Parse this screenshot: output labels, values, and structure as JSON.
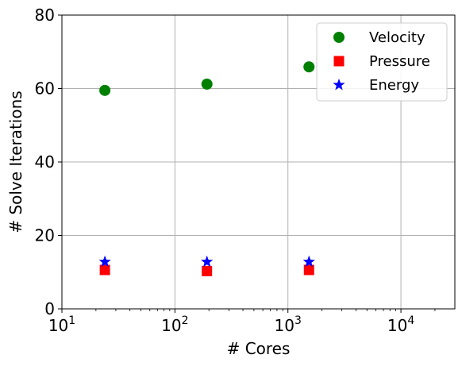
{
  "chart_data": {
    "type": "scatter",
    "xlabel": "# Cores",
    "ylabel": "# Solve Iterations",
    "xscale": "log",
    "xlim": [
      10,
      30000
    ],
    "ylim": [
      0,
      80
    ],
    "grid": true,
    "legend_position": "top-right",
    "x_ticks": [
      {
        "value": 10,
        "base": "10",
        "exp": "1"
      },
      {
        "value": 100,
        "base": "10",
        "exp": "2"
      },
      {
        "value": 1000,
        "base": "10",
        "exp": "3"
      },
      {
        "value": 10000,
        "base": "10",
        "exp": "4"
      }
    ],
    "y_ticks": [
      {
        "value": 0,
        "label": "0"
      },
      {
        "value": 20,
        "label": "20"
      },
      {
        "value": 40,
        "label": "40"
      },
      {
        "value": 60,
        "label": "60"
      },
      {
        "value": 80,
        "label": "80"
      }
    ],
    "series": [
      {
        "name": "Velocity",
        "marker": "circle",
        "color": "#008000",
        "points": [
          {
            "x": 24,
            "y": 59.5
          },
          {
            "x": 192,
            "y": 61.2
          },
          {
            "x": 1536,
            "y": 65.9
          }
        ]
      },
      {
        "name": "Pressure",
        "marker": "square",
        "color": "#ff0000",
        "points": [
          {
            "x": 24,
            "y": 10.6
          },
          {
            "x": 192,
            "y": 10.3
          },
          {
            "x": 1536,
            "y": 10.6
          }
        ]
      },
      {
        "name": "Energy",
        "marker": "star",
        "color": "#0000ff",
        "points": [
          {
            "x": 24,
            "y": 12.8
          },
          {
            "x": 192,
            "y": 12.8
          },
          {
            "x": 1536,
            "y": 12.8
          }
        ]
      }
    ]
  }
}
